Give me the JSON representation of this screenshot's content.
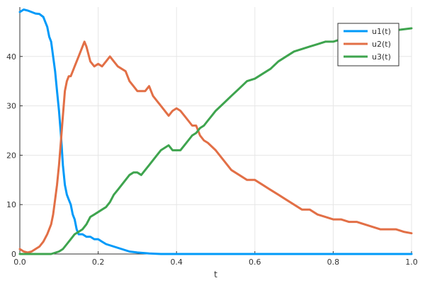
{
  "chart_data": {
    "type": "line",
    "xlabel": "t",
    "ylabel": "",
    "xlim": [
      0,
      1
    ],
    "ylim": [
      0,
      50
    ],
    "xticks": [
      0.0,
      0.2,
      0.4,
      0.6,
      0.8,
      1.0
    ],
    "xtick_labels": [
      "0.0",
      "0.2",
      "0.4",
      "0.6",
      "0.8",
      "1.0"
    ],
    "yticks": [
      0,
      10,
      20,
      30,
      40
    ],
    "ytick_labels": [
      "0",
      "10",
      "20",
      "30",
      "40"
    ],
    "grid": true,
    "legend_position": "top-right",
    "series": [
      {
        "name": "u1(t)",
        "color": "#009AF9",
        "points": [
          [
            0.0,
            49
          ],
          [
            0.01,
            49.5
          ],
          [
            0.02,
            49.3
          ],
          [
            0.03,
            49
          ],
          [
            0.04,
            48.7
          ],
          [
            0.05,
            48.6
          ],
          [
            0.06,
            48
          ],
          [
            0.065,
            47
          ],
          [
            0.07,
            46
          ],
          [
            0.075,
            44
          ],
          [
            0.08,
            43
          ],
          [
            0.085,
            40
          ],
          [
            0.09,
            37
          ],
          [
            0.095,
            33
          ],
          [
            0.1,
            29
          ],
          [
            0.105,
            24
          ],
          [
            0.11,
            18
          ],
          [
            0.115,
            14
          ],
          [
            0.12,
            12
          ],
          [
            0.125,
            11
          ],
          [
            0.13,
            10
          ],
          [
            0.135,
            8
          ],
          [
            0.14,
            7
          ],
          [
            0.145,
            5
          ],
          [
            0.15,
            4
          ],
          [
            0.16,
            4
          ],
          [
            0.17,
            3.5
          ],
          [
            0.18,
            3.5
          ],
          [
            0.19,
            3
          ],
          [
            0.2,
            3
          ],
          [
            0.21,
            2.5
          ],
          [
            0.22,
            2
          ],
          [
            0.24,
            1.5
          ],
          [
            0.26,
            1
          ],
          [
            0.28,
            0.5
          ],
          [
            0.3,
            0.3
          ],
          [
            0.33,
            0.1
          ],
          [
            0.36,
            0
          ],
          [
            0.4,
            0
          ],
          [
            0.5,
            0
          ],
          [
            0.6,
            0
          ],
          [
            0.7,
            0
          ],
          [
            0.8,
            0
          ],
          [
            0.9,
            0
          ],
          [
            1.0,
            0
          ]
        ]
      },
      {
        "name": "u2(t)",
        "color": "#E26F46",
        "points": [
          [
            0.0,
            1
          ],
          [
            0.01,
            0.5
          ],
          [
            0.02,
            0.3
          ],
          [
            0.03,
            0.5
          ],
          [
            0.04,
            1
          ],
          [
            0.05,
            1.5
          ],
          [
            0.06,
            2.5
          ],
          [
            0.07,
            4
          ],
          [
            0.08,
            6
          ],
          [
            0.085,
            8
          ],
          [
            0.09,
            11
          ],
          [
            0.095,
            14
          ],
          [
            0.1,
            18
          ],
          [
            0.105,
            23
          ],
          [
            0.11,
            28
          ],
          [
            0.115,
            33
          ],
          [
            0.12,
            35
          ],
          [
            0.125,
            36
          ],
          [
            0.13,
            36
          ],
          [
            0.135,
            37
          ],
          [
            0.14,
            38
          ],
          [
            0.15,
            40
          ],
          [
            0.16,
            42
          ],
          [
            0.165,
            43
          ],
          [
            0.17,
            42
          ],
          [
            0.18,
            39
          ],
          [
            0.19,
            38
          ],
          [
            0.2,
            38.5
          ],
          [
            0.21,
            38
          ],
          [
            0.22,
            39
          ],
          [
            0.23,
            40
          ],
          [
            0.24,
            39
          ],
          [
            0.25,
            38
          ],
          [
            0.27,
            37
          ],
          [
            0.28,
            35
          ],
          [
            0.29,
            34
          ],
          [
            0.3,
            33
          ],
          [
            0.31,
            33
          ],
          [
            0.32,
            33
          ],
          [
            0.33,
            34
          ],
          [
            0.34,
            32
          ],
          [
            0.35,
            31
          ],
          [
            0.36,
            30
          ],
          [
            0.38,
            28
          ],
          [
            0.39,
            29
          ],
          [
            0.4,
            29.5
          ],
          [
            0.41,
            29
          ],
          [
            0.42,
            28
          ],
          [
            0.43,
            27
          ],
          [
            0.44,
            26
          ],
          [
            0.45,
            26
          ],
          [
            0.46,
            24
          ],
          [
            0.47,
            23
          ],
          [
            0.48,
            22.5
          ],
          [
            0.5,
            21
          ],
          [
            0.52,
            19
          ],
          [
            0.54,
            17
          ],
          [
            0.56,
            16
          ],
          [
            0.58,
            15
          ],
          [
            0.6,
            15
          ],
          [
            0.62,
            14
          ],
          [
            0.64,
            13
          ],
          [
            0.66,
            12
          ],
          [
            0.68,
            11
          ],
          [
            0.7,
            10
          ],
          [
            0.72,
            9
          ],
          [
            0.74,
            9
          ],
          [
            0.76,
            8
          ],
          [
            0.78,
            7.5
          ],
          [
            0.8,
            7
          ],
          [
            0.82,
            7
          ],
          [
            0.84,
            6.5
          ],
          [
            0.86,
            6.5
          ],
          [
            0.88,
            6
          ],
          [
            0.9,
            5.5
          ],
          [
            0.92,
            5
          ],
          [
            0.94,
            5
          ],
          [
            0.96,
            5
          ],
          [
            0.98,
            4.5
          ],
          [
            1.0,
            4.2
          ]
        ]
      },
      {
        "name": "u3(t)",
        "color": "#3EA44E",
        "points": [
          [
            0.0,
            0
          ],
          [
            0.05,
            0
          ],
          [
            0.08,
            0
          ],
          [
            0.1,
            0.5
          ],
          [
            0.11,
            1
          ],
          [
            0.12,
            2
          ],
          [
            0.13,
            3
          ],
          [
            0.14,
            4
          ],
          [
            0.15,
            4.5
          ],
          [
            0.16,
            5
          ],
          [
            0.17,
            6
          ],
          [
            0.18,
            7.5
          ],
          [
            0.19,
            8
          ],
          [
            0.2,
            8.5
          ],
          [
            0.21,
            9
          ],
          [
            0.22,
            9.5
          ],
          [
            0.23,
            10.5
          ],
          [
            0.24,
            12
          ],
          [
            0.25,
            13
          ],
          [
            0.26,
            14
          ],
          [
            0.27,
            15
          ],
          [
            0.28,
            16
          ],
          [
            0.29,
            16.5
          ],
          [
            0.3,
            16.5
          ],
          [
            0.31,
            16
          ],
          [
            0.32,
            17
          ],
          [
            0.33,
            18
          ],
          [
            0.34,
            19
          ],
          [
            0.35,
            20
          ],
          [
            0.36,
            21
          ],
          [
            0.37,
            21.5
          ],
          [
            0.38,
            22
          ],
          [
            0.39,
            21
          ],
          [
            0.4,
            21
          ],
          [
            0.41,
            21
          ],
          [
            0.42,
            22
          ],
          [
            0.43,
            23
          ],
          [
            0.44,
            24
          ],
          [
            0.45,
            24.5
          ],
          [
            0.46,
            25.5
          ],
          [
            0.47,
            26
          ],
          [
            0.48,
            27
          ],
          [
            0.49,
            28
          ],
          [
            0.5,
            29
          ],
          [
            0.52,
            30.5
          ],
          [
            0.54,
            32
          ],
          [
            0.56,
            33.5
          ],
          [
            0.58,
            35
          ],
          [
            0.6,
            35.5
          ],
          [
            0.62,
            36.5
          ],
          [
            0.64,
            37.5
          ],
          [
            0.66,
            39
          ],
          [
            0.68,
            40
          ],
          [
            0.7,
            41
          ],
          [
            0.72,
            41.5
          ],
          [
            0.74,
            42
          ],
          [
            0.76,
            42.5
          ],
          [
            0.78,
            43
          ],
          [
            0.8,
            43
          ],
          [
            0.82,
            43.5
          ],
          [
            0.84,
            44
          ],
          [
            0.86,
            44
          ],
          [
            0.88,
            44.5
          ],
          [
            0.9,
            44.5
          ],
          [
            0.92,
            45
          ],
          [
            0.94,
            45
          ],
          [
            0.96,
            45.3
          ],
          [
            0.98,
            45.5
          ],
          [
            1.0,
            45.7
          ]
        ]
      }
    ]
  }
}
